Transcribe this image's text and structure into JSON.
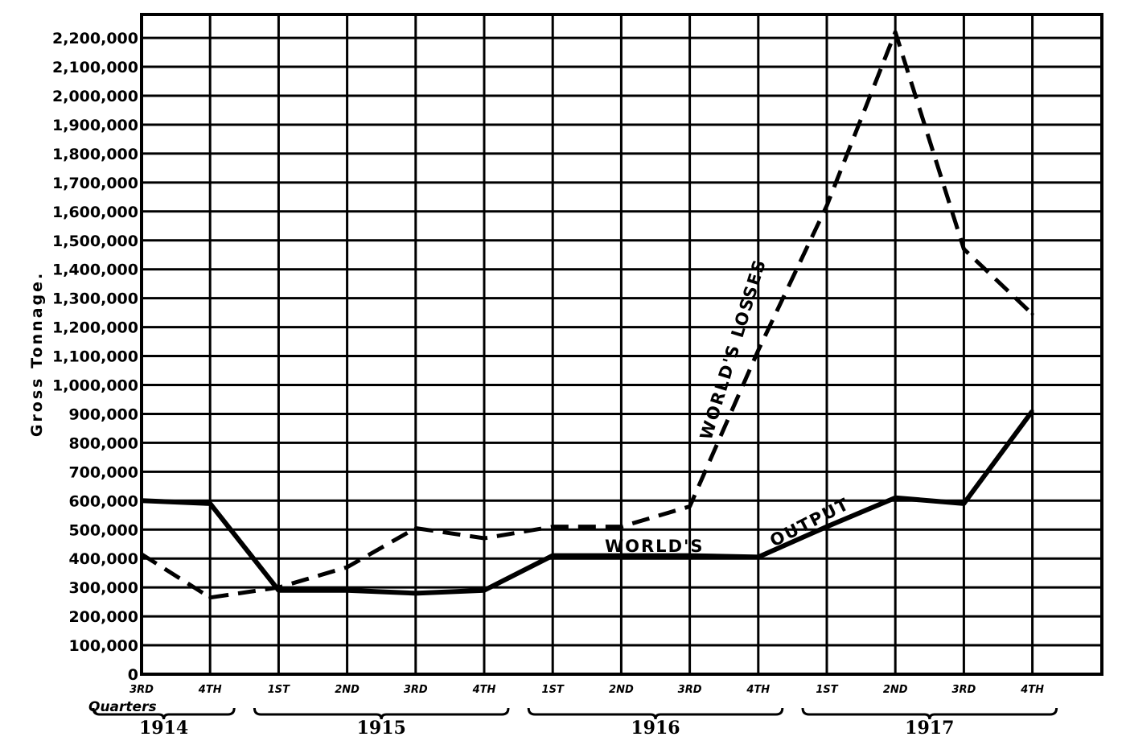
{
  "chart_data": {
    "type": "line",
    "title": "",
    "ylabel": "Gross Tonnage.",
    "xlabel": "Quarters",
    "ylim": [
      0,
      2200000
    ],
    "yticks": [
      "0",
      "100,000",
      "200,000",
      "300,000",
      "400,000",
      "500,000",
      "600,000",
      "700,000",
      "800,000",
      "900,000",
      "1,000,000",
      "1,100,000",
      "1,200,000",
      "1,300,000",
      "1,400,000",
      "1,500,000",
      "1,600,000",
      "1,700,000",
      "1,800,000",
      "1,900,000",
      "2,000,000",
      "2,100,000",
      "2,200,000"
    ],
    "grid": true,
    "categories": [
      "3RD",
      "4TH",
      "1ST",
      "2ND",
      "3RD",
      "4TH",
      "1ST",
      "2ND",
      "3RD",
      "4TH",
      "1ST",
      "2ND",
      "3RD",
      "4TH"
    ],
    "year_groups": [
      {
        "label": "1914",
        "from": 0,
        "to": 1
      },
      {
        "label": "1915",
        "from": 2,
        "to": 5
      },
      {
        "label": "1916",
        "from": 6,
        "to": 9
      },
      {
        "label": "1917",
        "from": 10,
        "to": 13
      }
    ],
    "series": [
      {
        "name": "WORLD'S OUTPUT",
        "style": "solid",
        "values": [
          600000,
          590000,
          290000,
          290000,
          280000,
          290000,
          410000,
          410000,
          410000,
          405000,
          510000,
          610000,
          590000,
          910000
        ]
      },
      {
        "name": "WORLD'S LOSSES",
        "style": "dashed",
        "values": [
          415000,
          265000,
          300000,
          370000,
          505000,
          470000,
          510000,
          510000,
          580000,
          1120000,
          1620000,
          2220000,
          1470000,
          1245000
        ]
      }
    ],
    "annotations": {
      "output_part1": "WORLD'S",
      "output_part2": "OUTPUT",
      "losses": "WORLD'S LOSSES"
    },
    "colors": {
      "ink": "#000000",
      "background": "#ffffff"
    }
  }
}
